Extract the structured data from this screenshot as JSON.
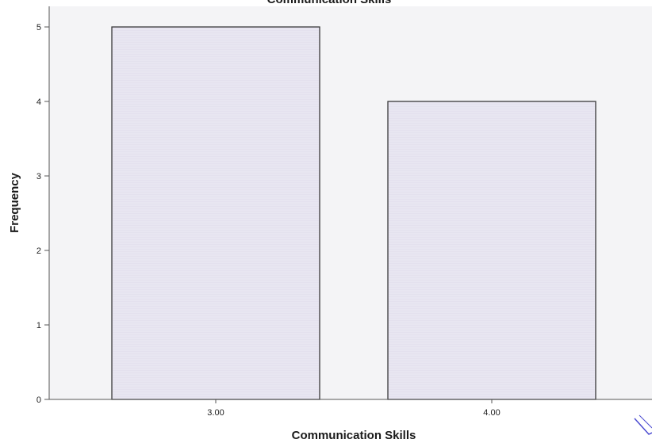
{
  "chart_data": {
    "type": "bar",
    "title": "Communication Skills",
    "xlabel": "Communication Skills",
    "ylabel": "Frequency",
    "categories": [
      "3.00",
      "4.00"
    ],
    "values": [
      5,
      4
    ],
    "ylim": [
      0,
      5
    ],
    "yticks": [
      "0",
      "1",
      "2",
      "3",
      "4",
      "5"
    ],
    "grid": false,
    "legend": "none",
    "colors": {
      "bar_fill": "#e4e1ee",
      "bar_stroke": "#3a3a3a",
      "plot_background": "#f4f4f6",
      "axis": "#555555"
    }
  }
}
